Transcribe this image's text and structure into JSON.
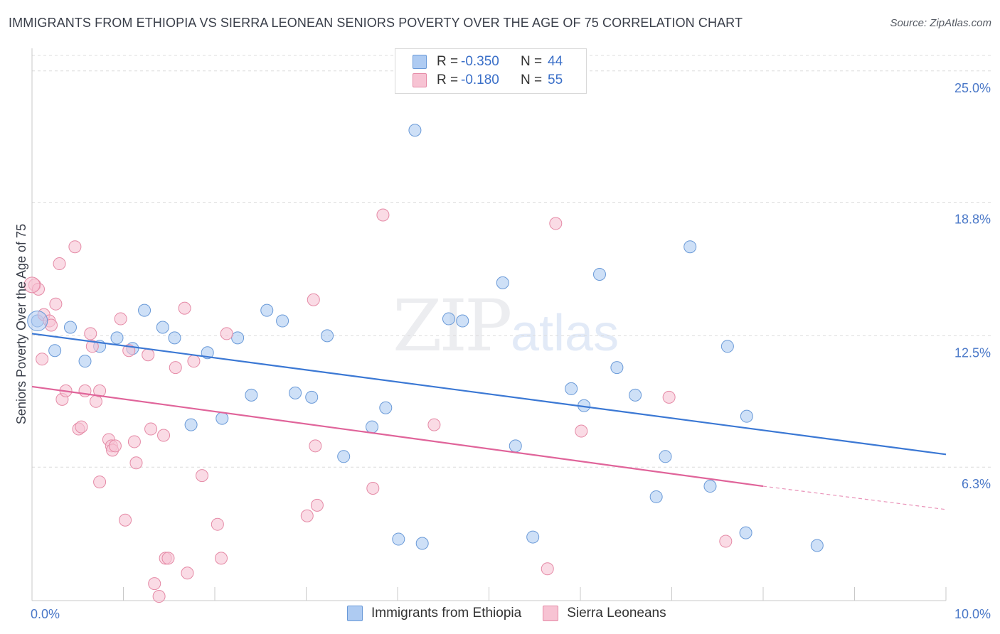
{
  "title": "IMMIGRANTS FROM ETHIOPIA VS SIERRA LEONEAN SENIORS POVERTY OVER THE AGE OF 75 CORRELATION CHART",
  "source": "Source: ZipAtlas.com",
  "watermark": {
    "zip": "ZIP",
    "atlas": "atlas"
  },
  "legend": {
    "rows": [
      {
        "r_label": "R =",
        "r_value": "-0.350",
        "n_label": "N =",
        "n_value": "44",
        "color": "#aecbf2",
        "border": "#6a9ad8"
      },
      {
        "r_label": "R =",
        "r_value": "-0.180",
        "n_label": "N =",
        "n_value": "55",
        "color": "#f7c3d3",
        "border": "#e58aa6"
      }
    ]
  },
  "bottom_legend": [
    {
      "label": "Immigrants from Ethiopia",
      "color": "#aecbf2",
      "border": "#6a9ad8"
    },
    {
      "label": "Sierra Leoneans",
      "color": "#f7c3d3",
      "border": "#e58aa6"
    }
  ],
  "chart_data": {
    "type": "scatter",
    "title": "IMMIGRANTS FROM ETHIOPIA VS SIERRA LEONEAN SENIORS POVERTY OVER THE AGE OF 75 CORRELATION CHART",
    "xlabel": "",
    "ylabel": "Seniors Poverty Over the Age of 75",
    "xlim": [
      0,
      10
    ],
    "ylim": [
      0,
      26
    ],
    "x_tick_labels": [
      "0.0%",
      "10.0%"
    ],
    "y_ticks": [
      6.3,
      12.5,
      18.8,
      25.0
    ],
    "y_tick_labels": [
      "6.3%",
      "12.5%",
      "18.8%",
      "25.0%"
    ],
    "grid": true,
    "legend_position": "top-center",
    "series": [
      {
        "name": "Immigrants from Ethiopia",
        "color": "#6a9ad8",
        "fill": "#aecbf2",
        "trend": {
          "x": [
            0.0,
            10.0
          ],
          "y": [
            12.6,
            6.9
          ],
          "color": "#3b78d4"
        },
        "points": [
          [
            0.06,
            13.2
          ],
          [
            0.25,
            11.8
          ],
          [
            0.42,
            12.9
          ],
          [
            0.58,
            11.3
          ],
          [
            0.74,
            12.0
          ],
          [
            0.93,
            12.4
          ],
          [
            1.1,
            11.9
          ],
          [
            1.23,
            13.7
          ],
          [
            1.43,
            12.9
          ],
          [
            1.56,
            12.4
          ],
          [
            1.74,
            8.3
          ],
          [
            1.92,
            11.7
          ],
          [
            2.08,
            8.6
          ],
          [
            2.25,
            12.4
          ],
          [
            2.4,
            9.7
          ],
          [
            2.57,
            13.7
          ],
          [
            2.74,
            13.2
          ],
          [
            2.88,
            9.8
          ],
          [
            3.06,
            9.6
          ],
          [
            3.23,
            12.5
          ],
          [
            3.41,
            6.8
          ],
          [
            3.72,
            8.2
          ],
          [
            3.87,
            9.1
          ],
          [
            4.01,
            2.9
          ],
          [
            4.19,
            22.2
          ],
          [
            4.27,
            2.7
          ],
          [
            4.56,
            13.3
          ],
          [
            4.71,
            13.2
          ],
          [
            5.15,
            15.0
          ],
          [
            5.29,
            7.3
          ],
          [
            5.48,
            3.0
          ],
          [
            5.9,
            10.0
          ],
          [
            6.04,
            9.2
          ],
          [
            6.21,
            15.4
          ],
          [
            6.4,
            11.0
          ],
          [
            6.6,
            9.7
          ],
          [
            6.83,
            4.9
          ],
          [
            6.93,
            6.8
          ],
          [
            7.2,
            16.7
          ],
          [
            7.42,
            5.4
          ],
          [
            7.61,
            12.0
          ],
          [
            7.81,
            3.2
          ],
          [
            7.82,
            8.7
          ],
          [
            8.59,
            2.6
          ]
        ]
      },
      {
        "name": "Sierra Leoneans",
        "color": "#e58aa6",
        "fill": "#f7c3d3",
        "trend": {
          "x": [
            0.0,
            8.0
          ],
          "y": [
            10.1,
            5.4
          ],
          "color": "#e0649a",
          "dashed_to": [
            10.0,
            4.3
          ]
        },
        "points": [
          [
            0.03,
            14.9
          ],
          [
            0.07,
            14.7
          ],
          [
            0.11,
            11.4
          ],
          [
            0.13,
            13.5
          ],
          [
            0.19,
            13.2
          ],
          [
            0.21,
            13.0
          ],
          [
            0.26,
            14.0
          ],
          [
            0.3,
            15.9
          ],
          [
            0.33,
            9.5
          ],
          [
            0.37,
            9.9
          ],
          [
            0.47,
            16.7
          ],
          [
            0.51,
            8.1
          ],
          [
            0.54,
            8.2
          ],
          [
            0.58,
            9.9
          ],
          [
            0.64,
            12.6
          ],
          [
            0.66,
            12.0
          ],
          [
            0.7,
            9.4
          ],
          [
            0.74,
            9.9
          ],
          [
            0.74,
            5.6
          ],
          [
            0.84,
            7.6
          ],
          [
            0.87,
            7.3
          ],
          [
            0.88,
            7.1
          ],
          [
            0.91,
            7.3
          ],
          [
            0.97,
            13.3
          ],
          [
            1.02,
            3.8
          ],
          [
            1.06,
            11.8
          ],
          [
            1.12,
            7.5
          ],
          [
            1.14,
            6.5
          ],
          [
            1.27,
            11.6
          ],
          [
            1.3,
            8.1
          ],
          [
            1.34,
            0.8
          ],
          [
            1.39,
            0.2
          ],
          [
            1.44,
            7.8
          ],
          [
            1.46,
            2.0
          ],
          [
            1.49,
            2.0
          ],
          [
            1.57,
            11.0
          ],
          [
            1.67,
            13.8
          ],
          [
            1.7,
            1.3
          ],
          [
            1.77,
            11.3
          ],
          [
            1.86,
            5.9
          ],
          [
            2.03,
            3.6
          ],
          [
            2.07,
            2.0
          ],
          [
            2.13,
            12.6
          ],
          [
            3.01,
            4.0
          ],
          [
            3.08,
            14.2
          ],
          [
            3.1,
            7.3
          ],
          [
            3.12,
            4.5
          ],
          [
            3.73,
            5.3
          ],
          [
            3.84,
            18.2
          ],
          [
            4.4,
            8.3
          ],
          [
            5.64,
            1.5
          ],
          [
            5.73,
            17.8
          ],
          [
            6.01,
            8.0
          ],
          [
            6.97,
            9.6
          ],
          [
            7.59,
            2.8
          ]
        ]
      }
    ]
  }
}
